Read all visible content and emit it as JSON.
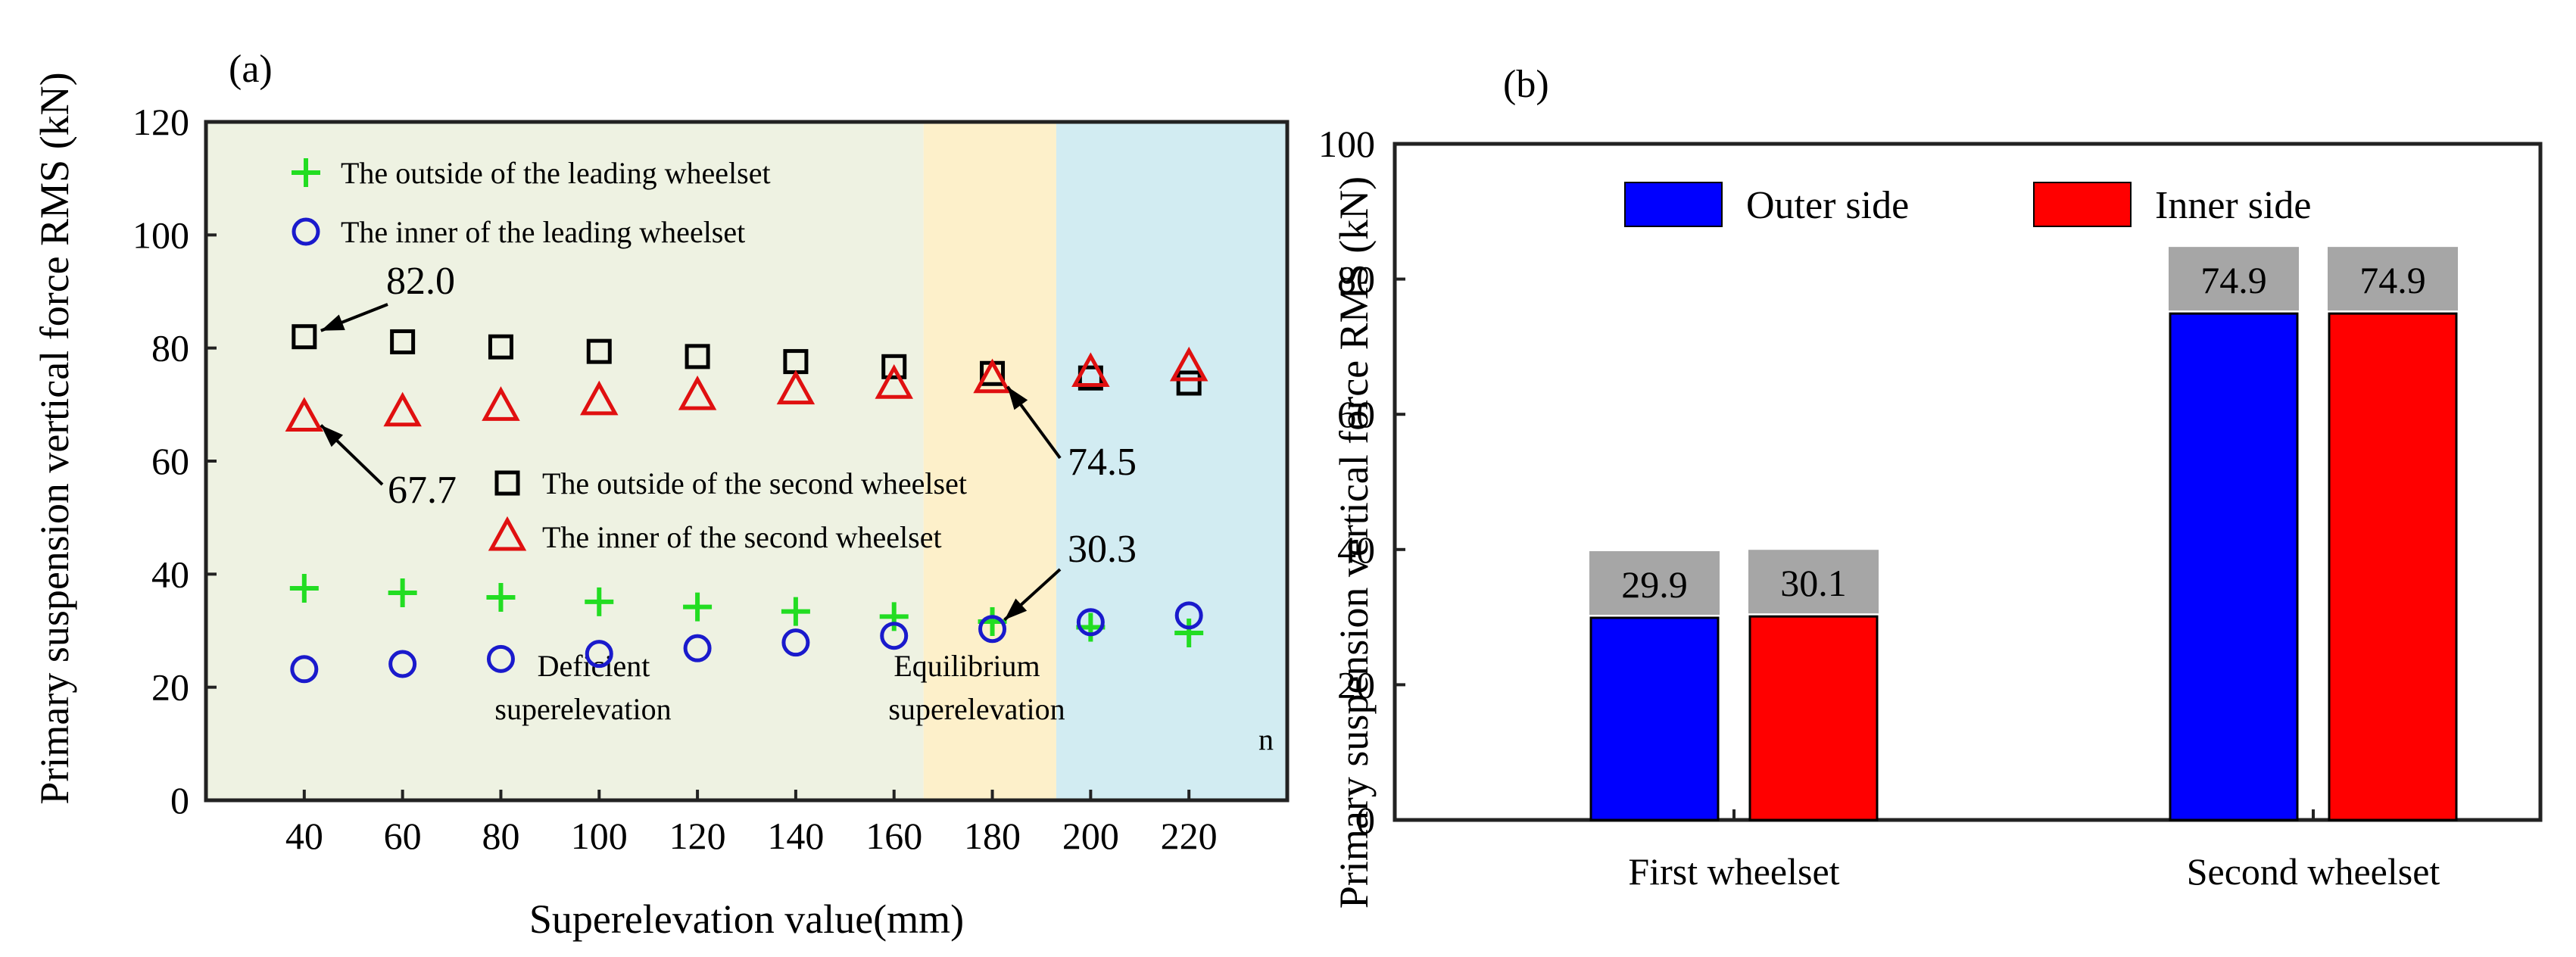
{
  "chart_data": [
    {
      "type": "scatter",
      "panel_label": "(a)",
      "xlabel": "Superelevation value(mm)",
      "ylabel": "Primary suspension vertical force RMS (kN)",
      "x": [
        40,
        60,
        80,
        100,
        120,
        140,
        160,
        180,
        200,
        220
      ],
      "xticks": [
        "40",
        "60",
        "80",
        "100",
        "120",
        "140",
        "160",
        "180",
        "200",
        "220"
      ],
      "xlim": [
        20,
        240
      ],
      "ylim": [
        0,
        120
      ],
      "yticks": [
        "0",
        "20",
        "40",
        "60",
        "80",
        "100",
        "120"
      ],
      "series": [
        {
          "name": "The outside of the leading wheelset",
          "marker": "plus",
          "color": "#22dd22",
          "values": [
            37.5,
            36.7,
            35.9,
            35.1,
            34.2,
            33.4,
            32.5,
            31.6,
            30.6,
            29.6
          ]
        },
        {
          "name": "The inner of the leading wheelset",
          "marker": "circle",
          "color": "#1a1acc",
          "values": [
            23.2,
            24.1,
            25.0,
            25.9,
            26.9,
            27.9,
            29.1,
            30.3,
            31.5,
            32.7
          ]
        },
        {
          "name": "The outside of the second wheelset",
          "marker": "square",
          "color": "#000000",
          "values": [
            82.0,
            81.1,
            80.2,
            79.4,
            78.5,
            77.6,
            76.7,
            75.5,
            74.7,
            73.8
          ]
        },
        {
          "name": "The inner of the second wheelset",
          "marker": "triangle",
          "color": "#e01010",
          "values": [
            67.7,
            68.6,
            69.6,
            70.6,
            71.5,
            72.5,
            73.5,
            74.5,
            75.6,
            76.6
          ]
        }
      ],
      "regions": [
        {
          "from": 20,
          "to": 166,
          "color": "#eef2e2",
          "label_lines": [
            "Deficient",
            "superelevation"
          ]
        },
        {
          "from": 166,
          "to": 193,
          "color": "#fdf0ca",
          "label_lines": [
            "Equilibrium",
            "superelevation"
          ]
        },
        {
          "from": 193,
          "to": 240,
          "color": "#d2ecf2",
          "label_lines": [
            "n"
          ]
        }
      ],
      "annotations": [
        {
          "text": "82.0",
          "x": 40,
          "y": 82.0
        },
        {
          "text": "67.7",
          "x": 40,
          "y": 67.7
        },
        {
          "text": "74.5",
          "x": 180,
          "y": 74.5
        },
        {
          "text": "30.3",
          "x": 180,
          "y": 30.3
        }
      ]
    },
    {
      "type": "bar",
      "panel_label": "(b)",
      "xlabel": "",
      "ylabel": "Primary suspension vertical force RMS (kN)",
      "categories": [
        "First wheelset",
        "Second wheelset"
      ],
      "ylim": [
        0,
        100
      ],
      "yticks": [
        "0",
        "20",
        "40",
        "60",
        "80",
        "100"
      ],
      "series": [
        {
          "name": "Outer side",
          "color": "#0000ff",
          "values": [
            29.9,
            74.9
          ],
          "labels": [
            "29.9",
            "74.9"
          ]
        },
        {
          "name": "Inner side",
          "color": "#ff0000",
          "values": [
            30.1,
            74.9
          ],
          "labels": [
            "30.1",
            "74.9"
          ]
        }
      ]
    }
  ]
}
